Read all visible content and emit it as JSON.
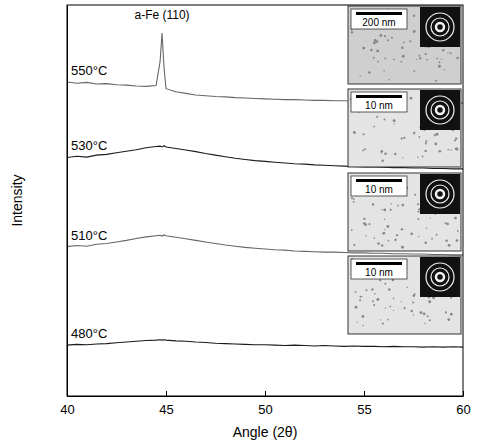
{
  "chart_data": {
    "type": "line",
    "x_label": "Angle (2θ)",
    "y_label": "Intensity",
    "xlim": [
      40,
      60
    ],
    "xticks": [
      40,
      45,
      50,
      55,
      60
    ],
    "ylim": [
      0,
      100
    ],
    "tick_labels": "x",
    "grid": false,
    "x": [
      40,
      40.5,
      41,
      41.5,
      42,
      42.5,
      43,
      43.5,
      44,
      44.5,
      44.7,
      44.8,
      44.9,
      45,
      45.5,
      46,
      46.5,
      47,
      47.5,
      48,
      48.5,
      49,
      49.5,
      50,
      50.5,
      51,
      51.5,
      52,
      52.5,
      53,
      53.5,
      54,
      54.5,
      55,
      55.5,
      56,
      56.5,
      57,
      57.5,
      58,
      58.5,
      59,
      59.5,
      60
    ],
    "series": [
      {
        "name": "550°C",
        "color": "#666666",
        "values": [
          80.3,
          80.0,
          80.2,
          79.8,
          79.9,
          79.6,
          79.5,
          79.3,
          79.2,
          79.4,
          85.5,
          92.8,
          84.0,
          78.6,
          77.8,
          77.4,
          77.0,
          76.8,
          76.6,
          76.5,
          76.3,
          76.2,
          76.1,
          76.0,
          75.9,
          75.8,
          75.8,
          75.7,
          75.6,
          75.6,
          75.5,
          75.5,
          75.4,
          75.4,
          75.3,
          75.3,
          75.2,
          75.2,
          75.1,
          75.1,
          75.0,
          75.0,
          74.9,
          74.9
        ]
      },
      {
        "name": "530°C",
        "color": "#1a1a1a",
        "values": [
          61.0,
          61.3,
          61.1,
          61.6,
          61.8,
          62.2,
          62.6,
          63.0,
          63.5,
          63.8,
          63.9,
          63.7,
          64.0,
          63.7,
          63.3,
          62.9,
          62.5,
          62.0,
          61.6,
          61.2,
          60.8,
          60.5,
          60.2,
          60.0,
          59.8,
          59.6,
          59.4,
          59.3,
          59.1,
          59.0,
          58.9,
          58.8,
          58.7,
          58.6,
          58.6,
          58.5,
          58.4,
          58.4,
          58.3,
          58.3,
          58.2,
          58.2,
          58.1,
          58.1
        ]
      },
      {
        "name": "510°C",
        "color": "#666666",
        "values": [
          38.2,
          38.5,
          38.3,
          38.8,
          39.0,
          39.4,
          39.8,
          40.3,
          40.7,
          41.0,
          41.1,
          40.9,
          41.2,
          41.0,
          40.6,
          40.2,
          39.8,
          39.4,
          39.0,
          38.6,
          38.3,
          38.0,
          37.8,
          37.6,
          37.4,
          37.3,
          37.1,
          37.0,
          36.9,
          36.8,
          36.8,
          36.7,
          36.6,
          36.6,
          36.5,
          36.5,
          36.4,
          36.4,
          36.3,
          36.3,
          36.2,
          36.2,
          36.1,
          36.1
        ]
      },
      {
        "name": "480°C",
        "color": "#1a1a1a",
        "values": [
          13.0,
          13.2,
          13.1,
          13.3,
          13.4,
          13.6,
          13.8,
          14.0,
          14.2,
          14.3,
          14.4,
          14.3,
          14.4,
          14.3,
          14.1,
          14.0,
          13.8,
          13.7,
          13.5,
          13.4,
          13.3,
          13.2,
          13.1,
          13.1,
          13.0,
          12.9,
          13.0,
          12.9,
          12.8,
          12.9,
          12.8,
          12.7,
          12.8,
          12.7,
          12.7,
          12.6,
          12.7,
          12.6,
          12.6,
          12.5,
          12.6,
          12.5,
          12.6,
          12.5
        ]
      }
    ],
    "annotations": [
      {
        "text": "a-Fe (110)",
        "x": 44.8,
        "y": 96.5
      }
    ],
    "insets": [
      {
        "scale_bar": "200 nm"
      },
      {
        "scale_bar": "10 nm"
      },
      {
        "scale_bar": "10 nm"
      },
      {
        "scale_bar": "10 nm"
      }
    ]
  }
}
